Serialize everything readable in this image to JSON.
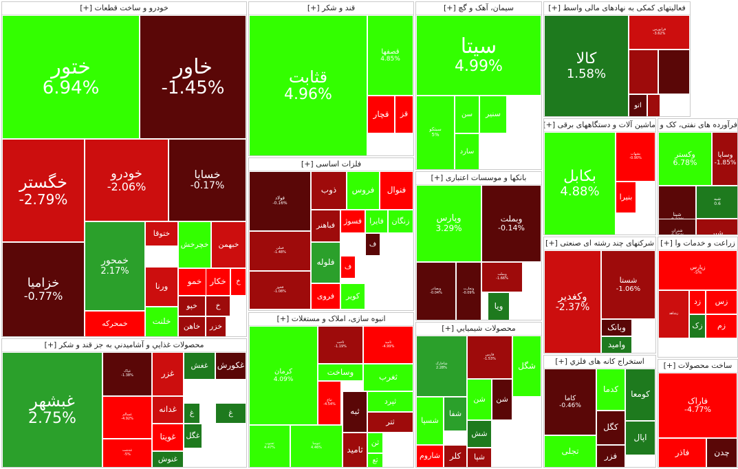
{
  "colors": {
    "up_strong": "#33ff00",
    "up": "#2ba02b",
    "up_dark": "#1e7a1e",
    "down_strong": "#ff0000",
    "down": "#cc0e0e",
    "down_mid": "#9e0b0b",
    "down_dark": "#5a0707"
  },
  "sectors": [
    {
      "name": "auto",
      "title": "خودرو و ساخت قطعات [+]",
      "tiles": [
        {
          "symbol": "ختور",
          "change": "6.94%",
          "tone": "up_strong"
        },
        {
          "symbol": "خاور",
          "change": "-1.45%",
          "tone": "down_dark"
        },
        {
          "symbol": "خگستر",
          "change": "-2.79%",
          "tone": "down"
        },
        {
          "symbol": "خودرو",
          "change": "-2.06%",
          "tone": "down"
        },
        {
          "symbol": "خسایا",
          "change": "-0.17%",
          "tone": "down_dark"
        },
        {
          "symbol": "خزامیا",
          "change": "-0.77%",
          "tone": "down_dark"
        },
        {
          "symbol": "خمحور",
          "change": "2.17%",
          "tone": "up"
        },
        {
          "symbol": "ختوقا",
          "change": "",
          "tone": "down"
        },
        {
          "symbol": "خچرخش",
          "change": "",
          "tone": "up_strong"
        },
        {
          "symbol": "خبهمن",
          "change": "",
          "tone": "down"
        },
        {
          "symbol": "ورنا",
          "change": "",
          "tone": "down"
        },
        {
          "symbol": "خمو",
          "change": "",
          "tone": "down_strong"
        },
        {
          "symbol": "خکار",
          "change": "",
          "tone": "down_strong"
        },
        {
          "symbol": "خ",
          "change": "",
          "tone": "down_strong"
        },
        {
          "symbol": "خپو",
          "change": "",
          "tone": "down_mid"
        },
        {
          "symbol": "خ",
          "change": "",
          "tone": "down_mid"
        },
        {
          "symbol": "خمحرکه",
          "change": "",
          "tone": "down_strong"
        },
        {
          "symbol": "خلنت",
          "change": "",
          "tone": "up_strong"
        },
        {
          "symbol": "خاهن",
          "change": "",
          "tone": "down_mid"
        },
        {
          "symbol": "خزر",
          "change": "",
          "tone": "down_mid"
        }
      ]
    },
    {
      "name": "sugar",
      "title": "قند و شکر [+]",
      "tiles": [
        {
          "symbol": "قثابت",
          "change": "4.96%",
          "tone": "up_strong"
        },
        {
          "symbol": "قصفها",
          "change": "4.85%",
          "tone": "up_strong"
        },
        {
          "symbol": "قچار",
          "change": "",
          "tone": "down_strong"
        },
        {
          "symbol": "قز",
          "change": "",
          "tone": "down_strong"
        }
      ]
    },
    {
      "name": "cement",
      "title": "سیمان، آهک و گچ [+]",
      "tiles": [
        {
          "symbol": "سیتا",
          "change": "4.99%",
          "tone": "up_strong"
        },
        {
          "symbol": "سبتکو",
          "change": "5%",
          "tone": "up_strong"
        },
        {
          "symbol": "سن",
          "change": "",
          "tone": "up_strong"
        },
        {
          "symbol": "سنیر",
          "change": "",
          "tone": "up_strong"
        },
        {
          "symbol": "سارد",
          "change": "",
          "tone": "up_strong"
        }
      ]
    },
    {
      "name": "financial",
      "title": "فعالیتهای کمکی به نهادهای مالی واسط [+]",
      "tiles": [
        {
          "symbol": "کالا",
          "change": "1.58%",
          "tone": "up_dark"
        },
        {
          "symbol": "فرابورس",
          "change": "-3.62%",
          "tone": "down"
        },
        {
          "symbol": "",
          "change": "",
          "tone": "down_mid"
        },
        {
          "symbol": "",
          "change": "",
          "tone": "down_dark"
        },
        {
          "symbol": "اتو",
          "change": "",
          "tone": "down_dark"
        },
        {
          "symbol": "",
          "change": "",
          "tone": "down_mid"
        }
      ]
    },
    {
      "name": "oil",
      "title": "فرآورده های نفتی، کک و سوخ [+]",
      "tiles": [
        {
          "symbol": "وکستر",
          "change": "6.78%",
          "tone": "up_strong"
        },
        {
          "symbol": "وسایا",
          "change": "-1.85%",
          "tone": "down_mid"
        },
        {
          "symbol": "شپنا",
          "change": "-0.22%",
          "tone": "down_dark"
        },
        {
          "symbol": "شبه",
          "change": "0.6",
          "tone": "up_dark"
        },
        {
          "symbol": "شنران",
          "change": "-0.35%",
          "tone": "down_dark"
        },
        {
          "symbol": "شبر",
          "change": "",
          "tone": "down_mid"
        }
      ]
    },
    {
      "name": "metals",
      "title": "فلزات اساسی [+]",
      "tiles": [
        {
          "symbol": "فولاد",
          "change": "-0.16%",
          "tone": "down_dark"
        },
        {
          "symbol": "ذوب",
          "change": "",
          "tone": "down_mid"
        },
        {
          "symbol": "فروس",
          "change": "",
          "tone": "up_strong"
        },
        {
          "symbol": "فنوال",
          "change": "",
          "tone": "down_strong"
        },
        {
          "symbol": "فملی",
          "change": "-1.48%",
          "tone": "down_mid"
        },
        {
          "symbol": "فباهنر",
          "change": "",
          "tone": "down_mid"
        },
        {
          "symbol": "فسوژ",
          "change": "",
          "tone": "down_strong"
        },
        {
          "symbol": "فایرا",
          "change": "",
          "tone": "up_strong"
        },
        {
          "symbol": "زنگان",
          "change": "",
          "tone": "up_strong"
        },
        {
          "symbol": "فخوز",
          "change": "-1.08%",
          "tone": "down_mid"
        },
        {
          "symbol": "فلوله",
          "change": "",
          "tone": "up"
        },
        {
          "symbol": "فروی",
          "change": "",
          "tone": "down_strong"
        },
        {
          "symbol": "کویر",
          "change": "",
          "tone": "up_strong"
        },
        {
          "symbol": "ف",
          "change": "",
          "tone": "down_dark"
        },
        {
          "symbol": "ف",
          "change": "",
          "tone": "down_strong"
        }
      ]
    },
    {
      "name": "banks",
      "title": "بانکها و موسسات اعتباری [+]",
      "tiles": [
        {
          "symbol": "وپارس",
          "change": "3.29%",
          "tone": "up_strong"
        },
        {
          "symbol": "وبملت",
          "change": "-0.14%",
          "tone": "down_dark"
        },
        {
          "symbol": "وبصادر",
          "change": "-0.04%",
          "tone": "down_dark"
        },
        {
          "symbol": "وتجارت",
          "change": "-0.09%",
          "tone": "down_dark"
        },
        {
          "symbol": "وبملت",
          "change": "-1.66%",
          "tone": "down_mid"
        },
        {
          "symbol": "ویا",
          "change": "",
          "tone": "up_dark"
        }
      ]
    },
    {
      "name": "machinery",
      "title": "ماشین آلات و دستگاههای برقی [+]",
      "tiles": [
        {
          "symbol": "بکابل",
          "change": "4.88%",
          "tone": "up_strong"
        },
        {
          "symbol": "بشهاب",
          "change": "-0.90%",
          "tone": "down_strong"
        },
        {
          "symbol": "بنیرا",
          "change": "",
          "tone": "down_strong"
        }
      ]
    },
    {
      "name": "multi",
      "title": "شرکتهای چند رشته ای صنعتی [+]",
      "tiles": [
        {
          "symbol": "وکغدیر",
          "change": "-2.37%",
          "tone": "down"
        },
        {
          "symbol": "شستا",
          "change": "-1.06%",
          "tone": "down_mid"
        },
        {
          "symbol": "وبانک",
          "change": "",
          "tone": "down_dark"
        },
        {
          "symbol": "وامید",
          "change": "",
          "tone": "up_dark"
        }
      ]
    },
    {
      "name": "farming",
      "title": "زراعت و خدمات وا [+]",
      "tiles": [
        {
          "symbol": "زپارس",
          "change": "-5%",
          "tone": "down_strong"
        },
        {
          "symbol": "زشاهد",
          "change": "",
          "tone": "down"
        },
        {
          "symbol": "زد",
          "change": "",
          "tone": "down_strong"
        },
        {
          "symbol": "زس",
          "change": "",
          "tone": "down_strong"
        },
        {
          "symbol": "زک",
          "change": "",
          "tone": "up_dark"
        },
        {
          "symbol": "زم",
          "change": "",
          "tone": "down_strong"
        }
      ]
    },
    {
      "name": "food",
      "title": "محصولات غذایي و آشامیدني به جز قند و شکر [+]",
      "tiles": [
        {
          "symbol": "غبشهر",
          "change": "2.75%",
          "tone": "up"
        },
        {
          "symbol": "غپاک",
          "change": "-1.38%",
          "tone": "down_dark"
        },
        {
          "symbol": "غزر",
          "change": "",
          "tone": "down"
        },
        {
          "symbol": "غغش",
          "change": "",
          "tone": "up_dark"
        },
        {
          "symbol": "غکورش",
          "change": "",
          "tone": "down_dark"
        },
        {
          "symbol": "غسالم",
          "change": "-4.92%",
          "tone": "down_strong"
        },
        {
          "symbol": "غدانه",
          "change": "",
          "tone": "down"
        },
        {
          "symbol": "غدشت",
          "change": "-5%",
          "tone": "down_strong"
        },
        {
          "symbol": "غویتا",
          "change": "",
          "tone": "down_strong"
        },
        {
          "symbol": "غگل",
          "change": "",
          "tone": "up_dark"
        },
        {
          "symbol": "غنوش",
          "change": "",
          "tone": "up_dark"
        },
        {
          "symbol": "غ",
          "change": "",
          "tone": "up_dark"
        },
        {
          "symbol": "غ",
          "change": "",
          "tone": "up_dark"
        }
      ]
    },
    {
      "name": "construction",
      "title": "انبوه سازی، املاک و مستغلات [+]",
      "tiles": [
        {
          "symbol": "کرمان",
          "change": "4.09%",
          "tone": "up_strong"
        },
        {
          "symbol": "ثاخت",
          "change": "-1.19%",
          "tone": "down_mid"
        },
        {
          "symbol": "ثامید",
          "change": "-4.99%",
          "tone": "down_strong"
        },
        {
          "symbol": "وساخت",
          "change": "",
          "tone": "up_strong"
        },
        {
          "symbol": "ثغرب",
          "change": "",
          "tone": "up_strong"
        },
        {
          "symbol": "ثباغ",
          "change": "-4.54%",
          "tone": "down_strong"
        },
        {
          "symbol": "ثجنوب",
          "change": "4.47%",
          "tone": "up_strong"
        },
        {
          "symbol": "ثنوسا",
          "change": "4.46%",
          "tone": "up_strong"
        },
        {
          "symbol": "ثبه",
          "change": "",
          "tone": "down_dark"
        },
        {
          "symbol": "ثپرد",
          "change": "",
          "tone": "up_strong"
        },
        {
          "symbol": "ثتر",
          "change": "",
          "tone": "down_mid"
        },
        {
          "symbol": "ثامید",
          "change": "",
          "tone": "down_mid"
        },
        {
          "symbol": "ثن",
          "change": "",
          "tone": "up_strong"
        },
        {
          "symbol": "ثع",
          "change": "",
          "tone": "up_strong"
        }
      ]
    },
    {
      "name": "chemical",
      "title": "محصولات شیمیایي [+]",
      "tiles": [
        {
          "symbol": "شاخارک",
          "change": "2.28%",
          "tone": "up"
        },
        {
          "symbol": "فارس",
          "change": "-1.53%",
          "tone": "down_mid"
        },
        {
          "symbol": "شگل",
          "change": "",
          "tone": "up_strong"
        },
        {
          "symbol": "شفا",
          "change": "",
          "tone": "up"
        },
        {
          "symbol": "شن",
          "change": "",
          "tone": "up_strong"
        },
        {
          "symbol": "شن",
          "change": "",
          "tone": "down_dark"
        },
        {
          "symbol": "شسپا",
          "change": "",
          "tone": "up_strong"
        },
        {
          "symbol": "شش",
          "change": "",
          "tone": "up_dark"
        },
        {
          "symbol": "شاروم",
          "change": "",
          "tone": "down_strong"
        },
        {
          "symbol": "کلر",
          "change": "",
          "tone": "down_mid"
        },
        {
          "symbol": "شپا",
          "change": "",
          "tone": "down_mid"
        }
      ]
    },
    {
      "name": "mining",
      "title": "استخراج کانه های فلزي [+]",
      "tiles": [
        {
          "symbol": "کاما",
          "change": "-0.46%",
          "tone": "down_dark"
        },
        {
          "symbol": "کدما",
          "change": "",
          "tone": "up_strong"
        },
        {
          "symbol": "کگل",
          "change": "",
          "tone": "down_dark"
        },
        {
          "symbol": "کومعا",
          "change": "",
          "tone": "up_dark"
        },
        {
          "symbol": "اپال",
          "change": "",
          "tone": "up_dark"
        },
        {
          "symbol": "فزر",
          "change": "",
          "tone": "down_dark"
        },
        {
          "symbol": "تجلی",
          "change": "",
          "tone": "up_strong"
        }
      ]
    },
    {
      "name": "products",
      "title": "ساخت محصولات [+]",
      "tiles": [
        {
          "symbol": "فاراک",
          "change": "-4.77%",
          "tone": "down_strong"
        },
        {
          "symbol": "فاذر",
          "change": "",
          "tone": "down_strong"
        },
        {
          "symbol": "چدن",
          "change": "",
          "tone": "down_dark"
        }
      ]
    }
  ]
}
